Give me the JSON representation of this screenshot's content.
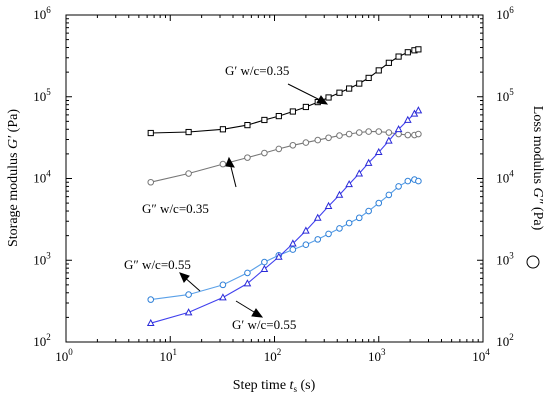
{
  "chart_data": {
    "type": "scatter",
    "title": "",
    "xlabel": {
      "main": "Step time ",
      "italic": "t",
      "sub": "s",
      "unit": " (s)"
    },
    "ylabel_left": {
      "main": "Storage modulus ",
      "italic": "G′",
      "unit": " (Pa)"
    },
    "ylabel_right": {
      "main": "Loss modulus ",
      "italic": "G″",
      "unit": " (Pa)"
    },
    "x_scale": "log",
    "y_scale": "log",
    "xlim": [
      1,
      10000
    ],
    "ylim": [
      100,
      1000000
    ],
    "x_ticks": [
      {
        "value": 1,
        "base": "10",
        "exp": "0"
      },
      {
        "value": 10,
        "base": "10",
        "exp": "1"
      },
      {
        "value": 100,
        "base": "10",
        "exp": "2"
      },
      {
        "value": 1000,
        "base": "10",
        "exp": "3"
      },
      {
        "value": 10000,
        "base": "10",
        "exp": "4"
      }
    ],
    "y_ticks": [
      {
        "value": 100,
        "base": "10",
        "exp": "2"
      },
      {
        "value": 1000,
        "base": "10",
        "exp": "3"
      },
      {
        "value": 10000,
        "base": "10",
        "exp": "4"
      },
      {
        "value": 100000,
        "base": "10",
        "exp": "5"
      },
      {
        "value": 1000000,
        "base": "10",
        "exp": "6"
      }
    ],
    "grid": false,
    "legend": "right-axis-symbol",
    "series": [
      {
        "label": "G′ w/c=0.35",
        "marker": "square",
        "color": "#000000",
        "line": "#000000",
        "x": [
          6.5,
          15,
          32,
          55,
          80,
          110,
          150,
          200,
          260,
          330,
          420,
          520,
          650,
          800,
          1000,
          1250,
          1550,
          1900,
          2200,
          2400
        ],
        "y": [
          36000,
          37000,
          40000,
          45000,
          52000,
          58000,
          66000,
          75000,
          86000,
          98000,
          112000,
          126000,
          145000,
          170000,
          210000,
          260000,
          310000,
          350000,
          370000,
          380000
        ]
      },
      {
        "label": "G″ w/c=0.35",
        "marker": "circle",
        "color": "#777777",
        "line": "#777777",
        "x": [
          6.5,
          15,
          32,
          55,
          80,
          110,
          150,
          200,
          260,
          330,
          420,
          520,
          650,
          800,
          1000,
          1250,
          1550,
          1900,
          2200,
          2400
        ],
        "y": [
          9000,
          11500,
          15000,
          18000,
          20500,
          23000,
          25500,
          27500,
          29500,
          31500,
          33500,
          35000,
          36500,
          37500,
          37500,
          36500,
          35000,
          34000,
          34000,
          35000
        ]
      },
      {
        "label": "G″ w/c=0.55",
        "marker": "circle",
        "color": "#2f80d8",
        "line": "#5aa0e8",
        "x": [
          6.5,
          15,
          32,
          55,
          80,
          110,
          150,
          200,
          260,
          330,
          420,
          520,
          650,
          800,
          1000,
          1250,
          1550,
          1900,
          2200,
          2400
        ],
        "y": [
          330,
          380,
          500,
          700,
          950,
          1150,
          1350,
          1550,
          1800,
          2100,
          2450,
          2850,
          3300,
          4000,
          5000,
          6300,
          8000,
          9300,
          9700,
          9300
        ]
      },
      {
        "label": "G′ w/c=0.55",
        "marker": "triangle",
        "color": "#2a2ad8",
        "line": "#4040ee",
        "x": [
          6.5,
          15,
          32,
          55,
          80,
          110,
          150,
          200,
          260,
          330,
          420,
          520,
          650,
          800,
          1000,
          1250,
          1550,
          1900,
          2200,
          2400
        ],
        "y": [
          170,
          230,
          350,
          520,
          780,
          1100,
          1600,
          2300,
          3300,
          4600,
          6300,
          8500,
          11500,
          15500,
          21000,
          29000,
          40000,
          52000,
          62000,
          68000
        ]
      }
    ],
    "annotations": [
      {
        "text": "G′ w/c=0.35"
      },
      {
        "text": "G″ w/c=0.35"
      },
      {
        "text": "G″ w/c=0.55"
      },
      {
        "text": "G′ w/c=0.55"
      }
    ]
  }
}
